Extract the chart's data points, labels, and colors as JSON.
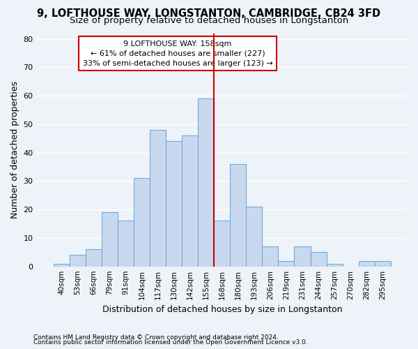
{
  "title1": "9, LOFTHOUSE WAY, LONGSTANTON, CAMBRIDGE, CB24 3FD",
  "title2": "Size of property relative to detached houses in Longstanton",
  "xlabel": "Distribution of detached houses by size in Longstanton",
  "ylabel": "Number of detached properties",
  "bin_labels": [
    "40sqm",
    "53sqm",
    "66sqm",
    "79sqm",
    "91sqm",
    "104sqm",
    "117sqm",
    "130sqm",
    "142sqm",
    "155sqm",
    "168sqm",
    "180sqm",
    "193sqm",
    "206sqm",
    "219sqm",
    "231sqm",
    "244sqm",
    "257sqm",
    "270sqm",
    "282sqm",
    "295sqm"
  ],
  "bar_heights": [
    1,
    4,
    6,
    19,
    16,
    31,
    48,
    44,
    46,
    59,
    16,
    36,
    21,
    7,
    2,
    7,
    5,
    1,
    0,
    2,
    2
  ],
  "bar_color": "#c8d9ef",
  "bar_edge_color": "#6baed6",
  "vline_color": "#cc0000",
  "annotation_text": "9 LOFTHOUSE WAY: 158sqm\n← 61% of detached houses are smaller (227)\n33% of semi-detached houses are larger (123) →",
  "annotation_box_color": "#ffffff",
  "annotation_box_edge": "#cc0000",
  "ylim": [
    0,
    82
  ],
  "yticks": [
    0,
    10,
    20,
    30,
    40,
    50,
    60,
    70,
    80
  ],
  "footer1": "Contains HM Land Registry data © Crown copyright and database right 2024.",
  "footer2": "Contains public sector information licensed under the Open Government Licence v3.0.",
  "bg_color": "#eef2f9",
  "grid_color": "#ffffff",
  "title1_fontsize": 10.5,
  "title2_fontsize": 9.5,
  "tick_fontsize": 7.5,
  "ylabel_fontsize": 9,
  "xlabel_fontsize": 9,
  "annotation_fontsize": 8,
  "footer_fontsize": 6.5
}
